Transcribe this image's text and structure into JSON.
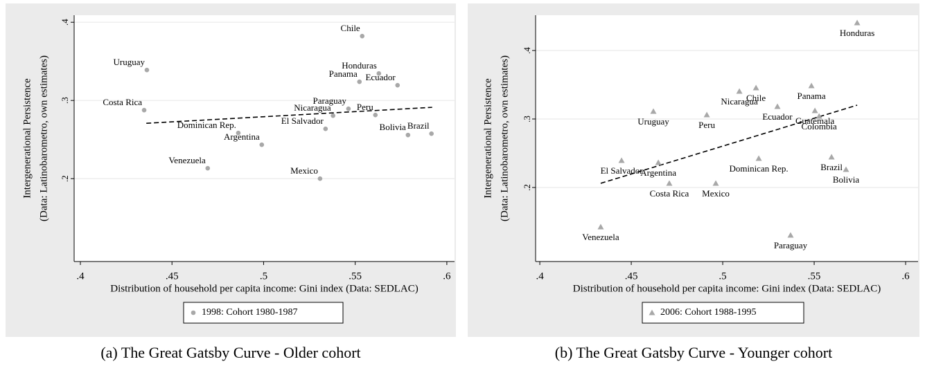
{
  "chart_data": [
    {
      "type": "scatter",
      "caption": "(a) The Great Gatsby Curve - Older cohort",
      "xlabel": "Distribution of household per capita income: Gini index (Data: SEDLAC)",
      "ylabel": [
        "Intergenerational Persistence",
        "(Data: Latinobarometro, own estimates)"
      ],
      "xlim": [
        0.3966,
        0.6042
      ],
      "ylim": [
        0.094,
        0.409
      ],
      "xticks": [
        {
          "value": 0.4,
          "label": ".4"
        },
        {
          "value": 0.45,
          "label": ".45"
        },
        {
          "value": 0.5,
          "label": ".5"
        },
        {
          "value": 0.55,
          "label": ".55"
        },
        {
          "value": 0.6,
          "label": ".6"
        }
      ],
      "yticks": [
        {
          "value": 0.2,
          "label": ".2"
        },
        {
          "value": 0.3,
          "label": ".3"
        },
        {
          "value": 0.4,
          "label": ".4"
        }
      ],
      "grid": true,
      "series": [
        {
          "name": "1998: Cohort 1980-1987",
          "color": "#a8a8a8",
          "marker": "circle",
          "labels": [
            "Chile",
            "Uruguay",
            "Honduras",
            "Panama",
            "Ecuador",
            "Costa Rica",
            "Paraguay",
            "Nicaragua",
            "Peru",
            "El Salvador",
            "Dominican Rep.",
            "Bolivia",
            "Brazil",
            "Argentina",
            "Venezuela",
            "Mexico"
          ],
          "x": [
            0.5538,
            0.4363,
            0.5629,
            0.5523,
            0.5731,
            0.4348,
            0.5463,
            0.5379,
            0.561,
            0.5338,
            0.4862,
            0.5788,
            0.5916,
            0.499,
            0.4695,
            0.5308
          ],
          "values": [
            0.3823,
            0.3389,
            0.3345,
            0.3239,
            0.3195,
            0.2876,
            0.2894,
            0.2805,
            0.2814,
            0.2637,
            0.2584,
            0.2558,
            0.2575,
            0.2434,
            0.2133,
            0.2
          ]
        }
      ],
      "fit_line": {
        "x": [
          0.436,
          0.592
        ],
        "values": [
          0.2708,
          0.2912
        ]
      }
    },
    {
      "type": "scatter",
      "caption": "(b) The Great Gatsby Curve - Younger cohort",
      "xlabel": "Distribution of household per capita income: Gini index (Data: SEDLAC)",
      "ylabel": [
        "Intergenerational Persistence",
        "(Data: Latinobarometro, own estimates)"
      ],
      "xlim": [
        0.3977,
        0.6068
      ],
      "ylim": [
        0.0919,
        0.4515
      ],
      "xticks": [
        {
          "value": 0.4,
          "label": ".4"
        },
        {
          "value": 0.45,
          "label": ".45"
        },
        {
          "value": 0.5,
          "label": ".5"
        },
        {
          "value": 0.55,
          "label": ".55"
        },
        {
          "value": 0.6,
          "label": ".6"
        }
      ],
      "yticks": [
        {
          "value": 0.2,
          "label": ".2"
        },
        {
          "value": 0.3,
          "label": ".3"
        },
        {
          "value": 0.4,
          "label": ".4"
        }
      ],
      "grid": true,
      "series": [
        {
          "name": "2006: Cohort 1988-1995",
          "color": "#a8a8a8",
          "marker": "triangle",
          "labels": [
            "Honduras",
            "Panama",
            "Chile",
            "Nicaragua",
            "Ecuador",
            "Uruguay",
            "Guatemala",
            "Peru",
            "Colombia",
            "El Salvador",
            "Argentina",
            "Dominican Rep.",
            "Brazil",
            "Bolivia",
            "Costa Rica",
            "Mexico",
            "Venezuela",
            "Paraguay"
          ],
          "x": [
            0.5735,
            0.5485,
            0.5182,
            0.5091,
            0.5299,
            0.4621,
            0.5504,
            0.4913,
            0.5527,
            0.4447,
            0.4648,
            0.5197,
            0.5595,
            0.5674,
            0.4708,
            0.4962,
            0.4333,
            0.5371
          ],
          "values": [
            0.4404,
            0.3485,
            0.3455,
            0.3404,
            0.3182,
            0.3111,
            0.3121,
            0.3061,
            0.304,
            0.2394,
            0.2364,
            0.2424,
            0.2444,
            0.2263,
            0.2061,
            0.2061,
            0.1424,
            0.1303
          ]
        }
      ],
      "fit_line": {
        "x": [
          0.4333,
          0.5735
        ],
        "values": [
          0.2061,
          0.3202
        ]
      }
    }
  ]
}
